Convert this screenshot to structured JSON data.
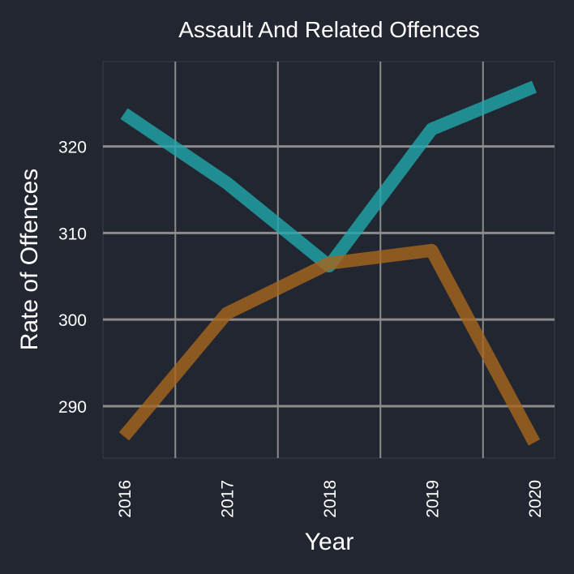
{
  "chart_data": {
    "type": "line",
    "title": "Assault And Related Offences",
    "xlabel": "Year",
    "ylabel": "Rate of Offences",
    "categories": [
      "2016",
      "2017",
      "2018",
      "2019",
      "2020"
    ],
    "yticks": [
      290,
      300,
      310,
      320
    ],
    "ylim": [
      284.0,
      329.8
    ],
    "grid": true,
    "legend": "none",
    "series": [
      {
        "values": [
          323.8,
          315.8,
          306.2,
          322.0,
          326.9
        ],
        "color": "#20a8ad"
      },
      {
        "values": [
          286.5,
          300.7,
          306.5,
          308.0,
          285.8
        ],
        "color": "#a8661d"
      }
    ]
  }
}
